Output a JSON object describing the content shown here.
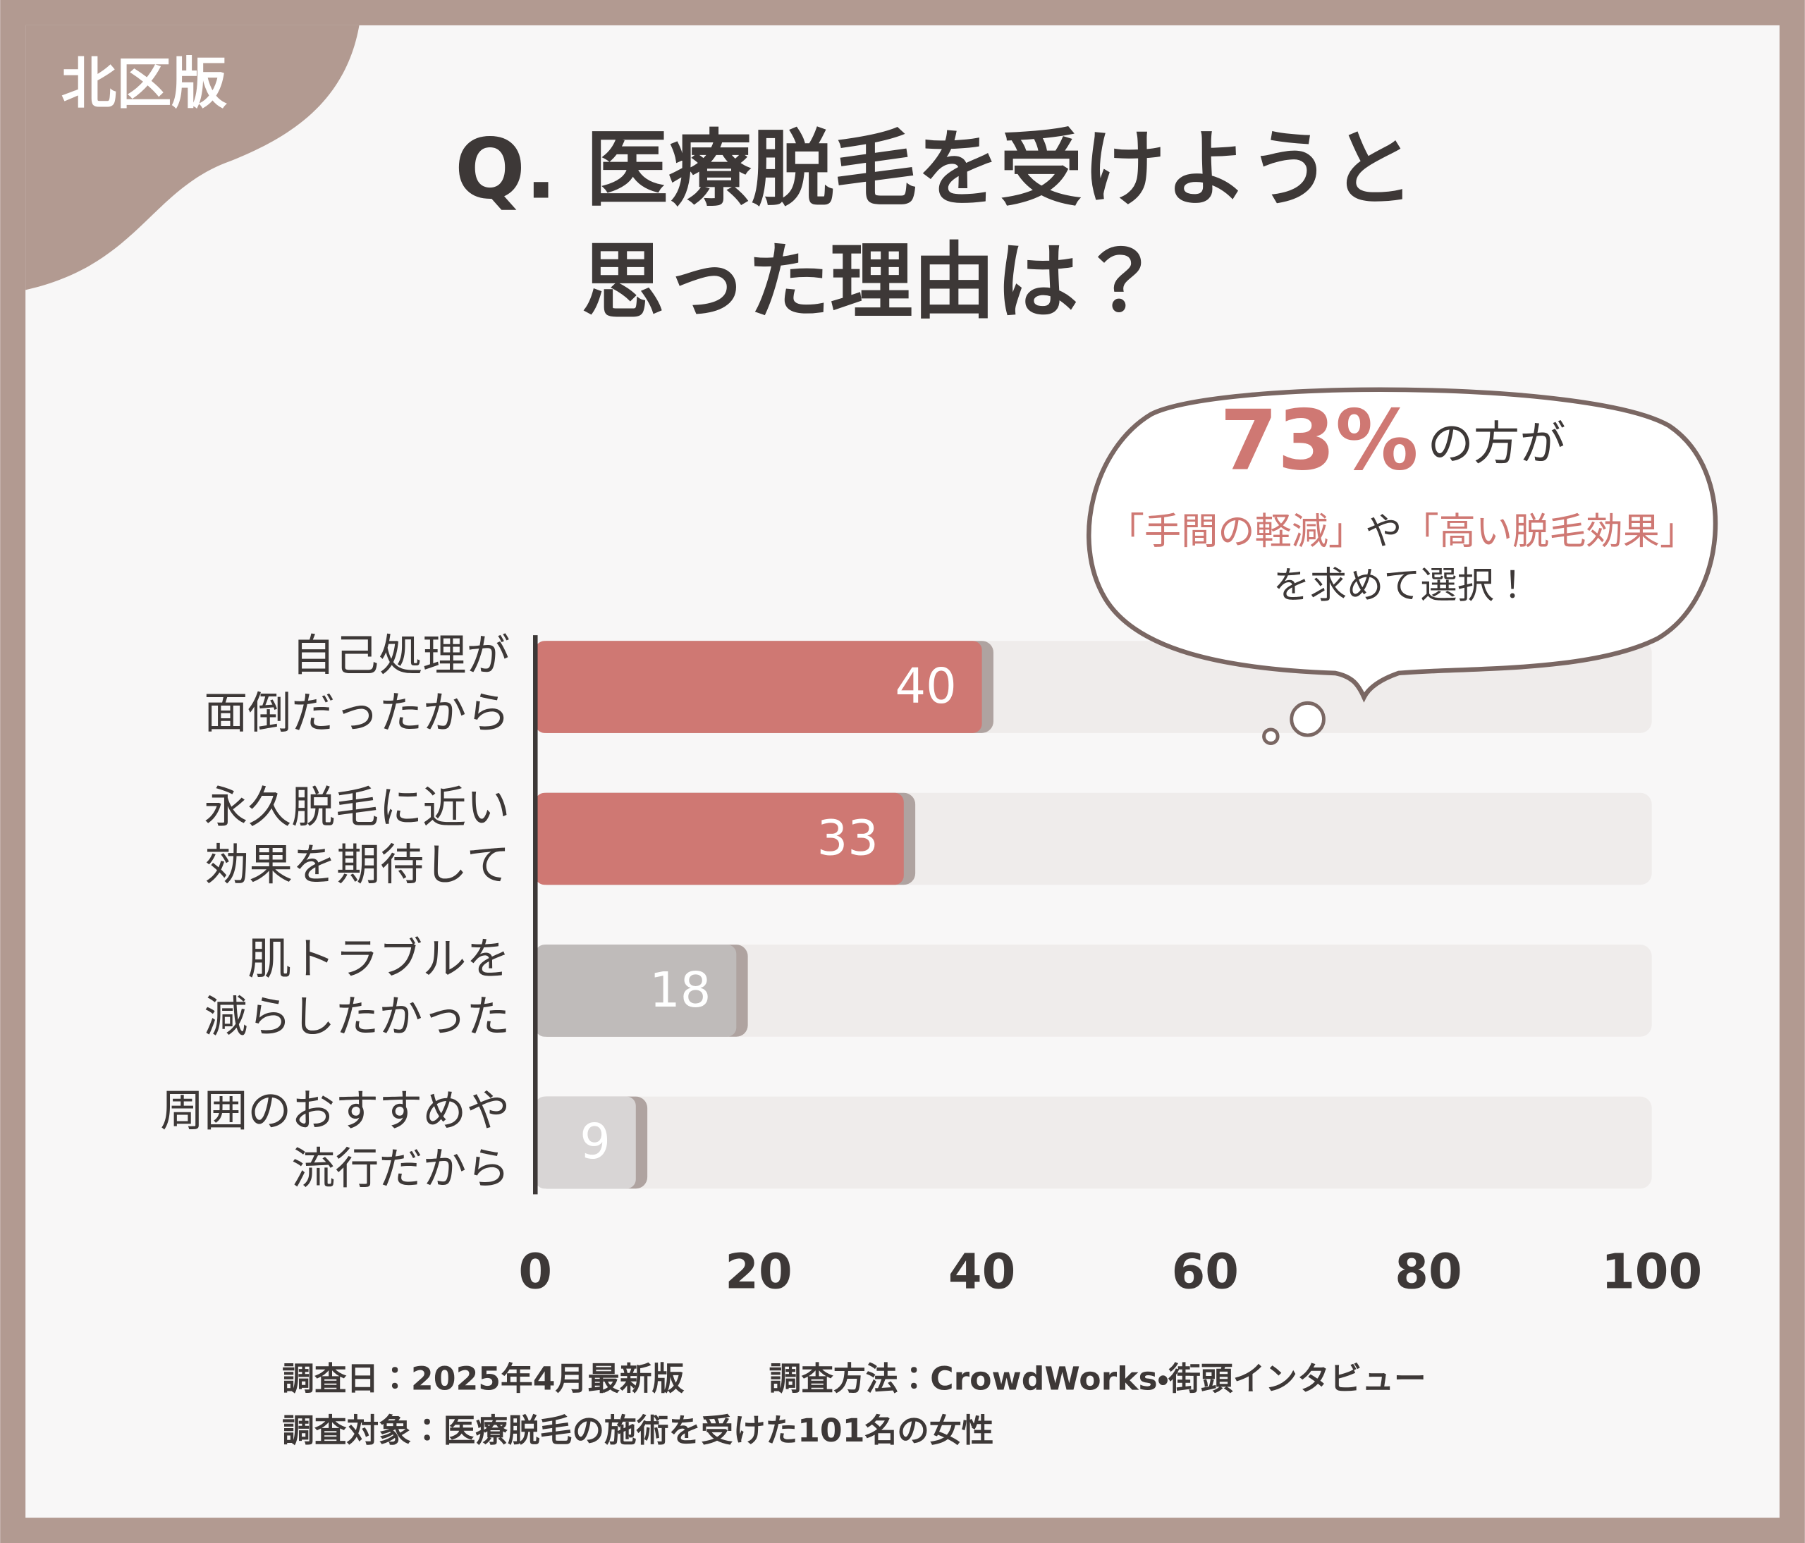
{
  "badge": "北区版",
  "chart_data": {
    "type": "bar",
    "orientation": "horizontal",
    "title": [
      "Q. 医療脱毛を受けようと",
      "思った理由は？"
    ],
    "categories": [
      [
        "自己処理が",
        "面倒だったから"
      ],
      [
        "永久脱毛に近い",
        "効果を期待して"
      ],
      [
        "肌トラブルを",
        "減らしたかった"
      ],
      [
        "周囲のおすすめや",
        "流行だから"
      ]
    ],
    "values": [
      40,
      33,
      18,
      9
    ],
    "colors": [
      "#cf7873",
      "#cf7873",
      "#bfbbba",
      "#d8d5d5"
    ],
    "xlim": [
      0,
      100
    ],
    "xticks": [
      0,
      20,
      40,
      60,
      80,
      100
    ],
    "callout": {
      "highlight": "73%",
      "text": "の方が",
      "line2": [
        "「手間の軽減」",
        "や",
        "「高い脱毛効果」"
      ],
      "line3": "を求めて選択！"
    }
  },
  "footnotes": [
    "調査日：2025年4月最新版",
    "調査方法：CrowdWorks・街頭インタビュー",
    "調査対象：医療脱毛の施術を受けた101名の女性"
  ]
}
